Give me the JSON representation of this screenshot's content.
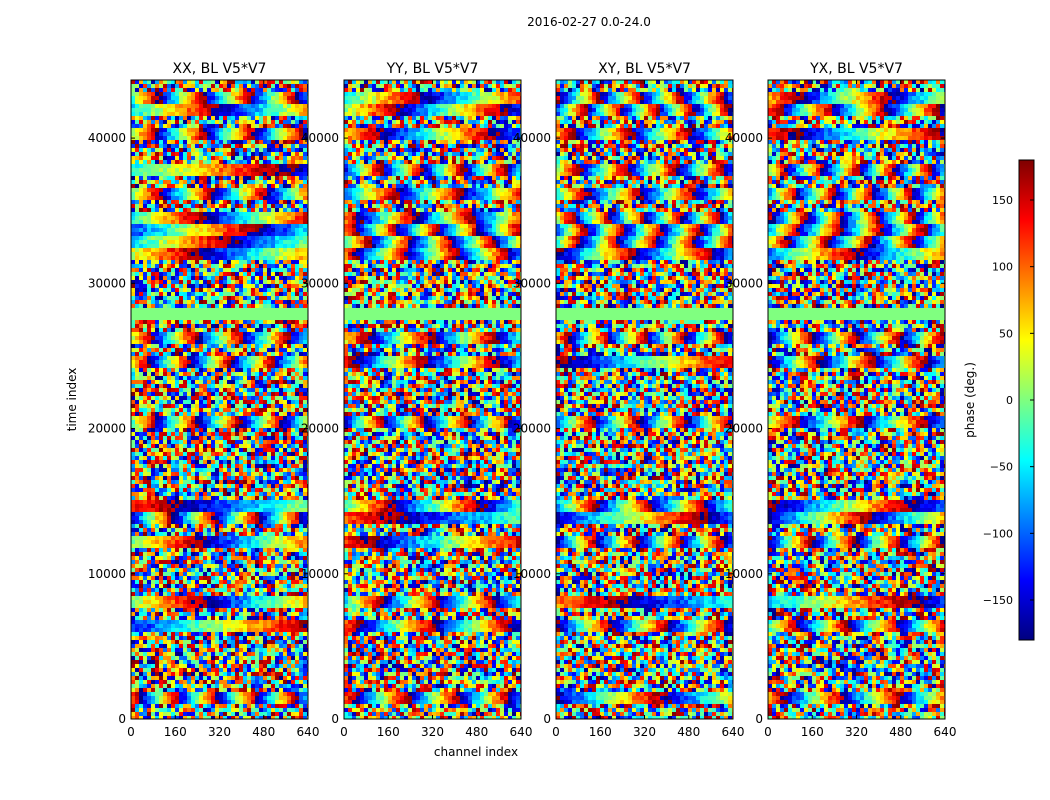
{
  "figure": {
    "suptitle": "2016-02-27 0.0-24.0"
  },
  "chart_data": [
    {
      "type": "heatmap",
      "title": "XX, BL V5*V7",
      "xlabel": "",
      "ylabel": "time index",
      "xlim": [
        0,
        640
      ],
      "ylim": [
        0,
        44000
      ],
      "x_ticks": [
        "0",
        "160",
        "320",
        "480",
        "640"
      ],
      "y_ticks": [
        "0",
        "10000",
        "20000",
        "30000",
        "40000"
      ],
      "colormap": "jet",
      "clim": [
        -180,
        180
      ]
    },
    {
      "type": "heatmap",
      "title": "YY, BL V5*V7",
      "xlabel": "channel index",
      "ylabel": "",
      "xlim": [
        0,
        640
      ],
      "ylim": [
        0,
        44000
      ],
      "x_ticks": [
        "0",
        "160",
        "320",
        "480",
        "640"
      ],
      "y_ticks": [
        "0",
        "10000",
        "20000",
        "30000",
        "40000"
      ],
      "colormap": "jet",
      "clim": [
        -180,
        180
      ]
    },
    {
      "type": "heatmap",
      "title": "XY, BL V5*V7",
      "xlabel": "",
      "ylabel": "",
      "xlim": [
        0,
        640
      ],
      "ylim": [
        0,
        44000
      ],
      "x_ticks": [
        "0",
        "160",
        "320",
        "480",
        "640"
      ],
      "y_ticks": [
        "0",
        "10000",
        "20000",
        "30000",
        "40000"
      ],
      "colormap": "jet",
      "clim": [
        -180,
        180
      ]
    },
    {
      "type": "heatmap",
      "title": "YX, BL V5*V7",
      "xlabel": "",
      "ylabel": "",
      "xlim": [
        0,
        640
      ],
      "ylim": [
        0,
        44000
      ],
      "x_ticks": [
        "0",
        "160",
        "320",
        "480",
        "640"
      ],
      "y_ticks": [
        "0",
        "10000",
        "20000",
        "30000",
        "40000"
      ],
      "colormap": "jet",
      "clim": [
        -180,
        180
      ]
    }
  ],
  "colorbar": {
    "label": "phase (deg.)",
    "ticks": [
      "150",
      "100",
      "50",
      "0",
      "−50",
      "−100",
      "−150"
    ],
    "tick_values": [
      150,
      100,
      50,
      0,
      -50,
      -100,
      -150
    ],
    "range": [
      -180,
      180
    ],
    "colormap": "jet"
  }
}
